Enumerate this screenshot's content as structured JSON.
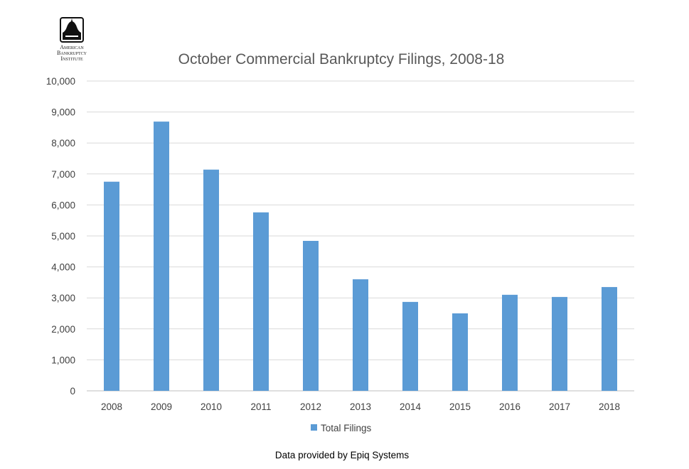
{
  "logo": {
    "line1": "American",
    "line2": "Bankruptcy",
    "line3": "Institute"
  },
  "footnote": "Data provided by Epiq Systems",
  "colors": {
    "bar": "#5b9bd5",
    "grid": "#d9d9d9",
    "axis": "#bfbfbf"
  },
  "chart_data": {
    "type": "bar",
    "title": "October Commercial Bankruptcy Filings, 2008-18",
    "categories": [
      "2008",
      "2009",
      "2010",
      "2011",
      "2012",
      "2013",
      "2014",
      "2015",
      "2016",
      "2017",
      "2018"
    ],
    "series": [
      {
        "name": "Total Filings",
        "values": [
          6750,
          8690,
          7140,
          5760,
          4840,
          3600,
          2870,
          2500,
          3100,
          3030,
          3350
        ]
      }
    ],
    "xlabel": "",
    "ylabel": "",
    "ylim": [
      0,
      10000
    ],
    "yticks": [
      "0",
      "1,000",
      "2,000",
      "3,000",
      "4,000",
      "5,000",
      "6,000",
      "7,000",
      "8,000",
      "9,000",
      "10,000"
    ],
    "grid": true,
    "legend": "bottom"
  }
}
